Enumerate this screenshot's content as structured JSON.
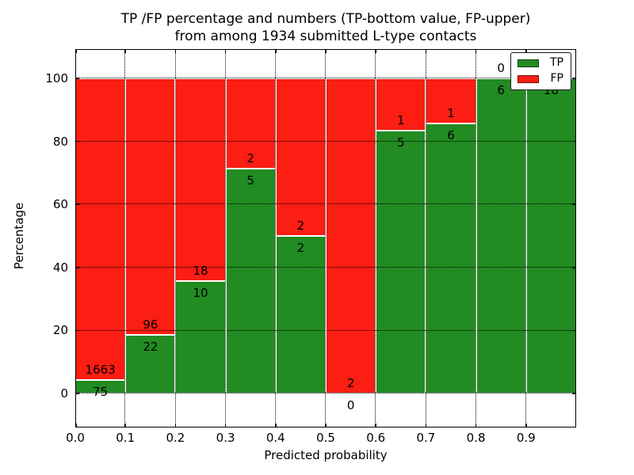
{
  "title": {
    "line1": "TP /FP percentage and numbers (TP-bottom value, FP-upper)",
    "line2": "from among 1934 submitted L-type contacts"
  },
  "axes": {
    "x_label": "Predicted probability",
    "y_label": "Percentage",
    "x_tick_labels": [
      "0.0",
      "0.1",
      "0.2",
      "0.3",
      "0.4",
      "0.5",
      "0.6",
      "0.7",
      "0.8",
      "0.9"
    ],
    "y_tick_labels": [
      "0",
      "20",
      "40",
      "60",
      "80",
      "100"
    ],
    "y_tick_values": [
      0,
      20,
      40,
      60,
      80,
      100
    ]
  },
  "legend": {
    "items": [
      {
        "label": "TP",
        "color": "#228b22"
      },
      {
        "label": "FP",
        "color": "#fc1d13"
      }
    ]
  },
  "colors": {
    "tp": "#228b22",
    "fp": "#fc1d13",
    "grid": "#000000",
    "frame": "#000000",
    "background": "#ffffff",
    "bar_edge": "#ffffff"
  },
  "chart_data": {
    "type": "bar",
    "stacked": true,
    "normalized_to_percent": true,
    "title": "TP /FP percentage and numbers (TP-bottom value, FP-upper) from among 1934 submitted L-type contacts",
    "xlabel": "Predicted probability",
    "ylabel": "Percentage",
    "xlim": [
      0.0,
      1.0
    ],
    "ylim": [
      -11,
      109
    ],
    "bin_width": 0.1,
    "grid": true,
    "legend_position": "upper right",
    "total_contacts": 1934,
    "categories": [
      "0.0-0.1",
      "0.1-0.2",
      "0.2-0.3",
      "0.3-0.4",
      "0.4-0.5",
      "0.5-0.6",
      "0.6-0.7",
      "0.7-0.8",
      "0.8-0.9",
      "0.9-1.0"
    ],
    "series": [
      {
        "name": "TP",
        "values": [
          75,
          22,
          10,
          5,
          2,
          0,
          5,
          6,
          6,
          18
        ]
      },
      {
        "name": "FP",
        "values": [
          1663,
          96,
          18,
          2,
          2,
          2,
          1,
          1,
          0,
          0
        ]
      }
    ],
    "bins": [
      {
        "range": "0.0-0.1",
        "tp": 75,
        "fp": 1663
      },
      {
        "range": "0.1-0.2",
        "tp": 22,
        "fp": 96
      },
      {
        "range": "0.2-0.3",
        "tp": 10,
        "fp": 18
      },
      {
        "range": "0.3-0.4",
        "tp": 5,
        "fp": 2
      },
      {
        "range": "0.4-0.5",
        "tp": 2,
        "fp": 2
      },
      {
        "range": "0.5-0.6",
        "tp": 0,
        "fp": 2
      },
      {
        "range": "0.6-0.7",
        "tp": 5,
        "fp": 1
      },
      {
        "range": "0.7-0.8",
        "tp": 6,
        "fp": 1
      },
      {
        "range": "0.8-0.9",
        "tp": 6,
        "fp": 0
      },
      {
        "range": "0.9-1.0",
        "tp": 18,
        "fp": 0
      }
    ]
  }
}
